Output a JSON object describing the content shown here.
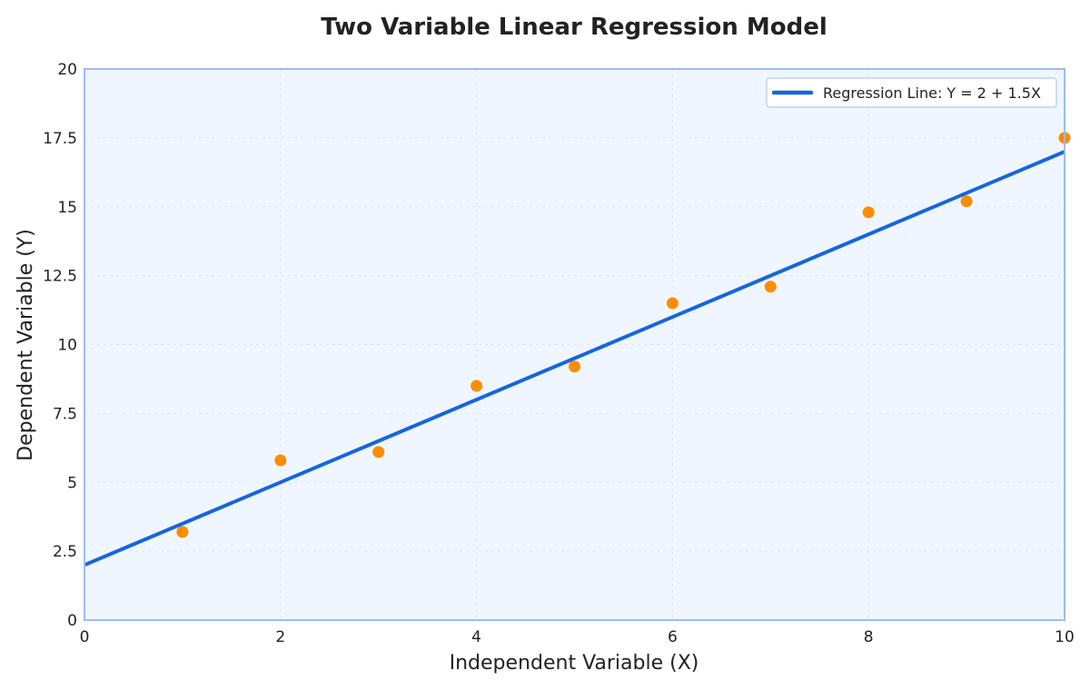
{
  "chart_data": {
    "type": "scatter",
    "title": "Two Variable Linear Regression Model",
    "xlabel": "Independent Variable (X)",
    "ylabel": "Dependent Variable (Y)",
    "xlim": [
      0,
      10
    ],
    "ylim": [
      0,
      20
    ],
    "x_ticks": [
      0,
      2,
      4,
      6,
      8,
      10
    ],
    "x_tick_labels": [
      "0",
      "2",
      "4",
      "6",
      "8",
      "10"
    ],
    "y_ticks": [
      0,
      2.5,
      5,
      7.5,
      10,
      12.5,
      15,
      17.5,
      20
    ],
    "y_tick_labels": [
      "0",
      "2.5",
      "5",
      "7.5",
      "10",
      "12.5",
      "15",
      "17.5",
      "20"
    ],
    "grid": true,
    "legend_position": "top-right",
    "series": [
      {
        "kind": "scatter",
        "x": [
          1,
          2,
          3,
          4,
          5,
          6,
          7,
          8,
          9,
          10
        ],
        "y": [
          3.2,
          5.8,
          6.1,
          8.5,
          9.2,
          11.5,
          12.1,
          14.8,
          15.2,
          17.5
        ],
        "color": "#ff8c00"
      },
      {
        "kind": "line",
        "name": "Regression Line: Y = 2 + 1.5X",
        "x": [
          0,
          10
        ],
        "y": [
          2,
          17
        ],
        "color": "#1565e0"
      }
    ],
    "colors": {
      "plot_background": "#f0f6ff",
      "axes_border": "#9bbcf5",
      "grid": "#dde6f3",
      "text": "#222222"
    }
  }
}
